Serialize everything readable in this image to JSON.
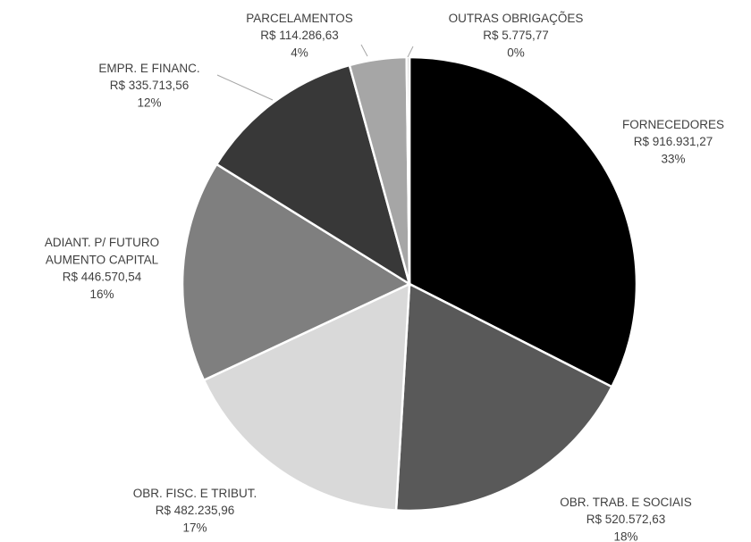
{
  "chart_data": {
    "type": "pie",
    "categories": [
      "FORNECEDORES",
      "OBR. TRAB. E SOCIAIS",
      "OBR. FISC. E TRIBUT.",
      "ADIANT. P/ FUTURO\nAUMENTO CAPITAL",
      "EMPR. E FINANC.",
      "PARCELAMENTOS",
      "OUTRAS OBRIGAÇÕES"
    ],
    "values": [
      916931.27,
      520572.63,
      482235.96,
      446570.54,
      335713.56,
      114286.63,
      5775.77
    ],
    "value_labels": [
      "R$ 916.931,27",
      "R$ 520.572,63",
      "R$ 482.235,96",
      "R$ 446.570,54",
      "R$ 335.713,56",
      "R$ 114.286,63",
      "R$ 5.775,77"
    ],
    "percent_labels": [
      "33%",
      "18%",
      "17%",
      "16%",
      "12%",
      "4%",
      "0%"
    ],
    "colors": [
      "#000000",
      "#595959",
      "#d9d9d9",
      "#7f7f7f",
      "#383838",
      "#a6a6a6",
      "#c8c8c8"
    ]
  }
}
